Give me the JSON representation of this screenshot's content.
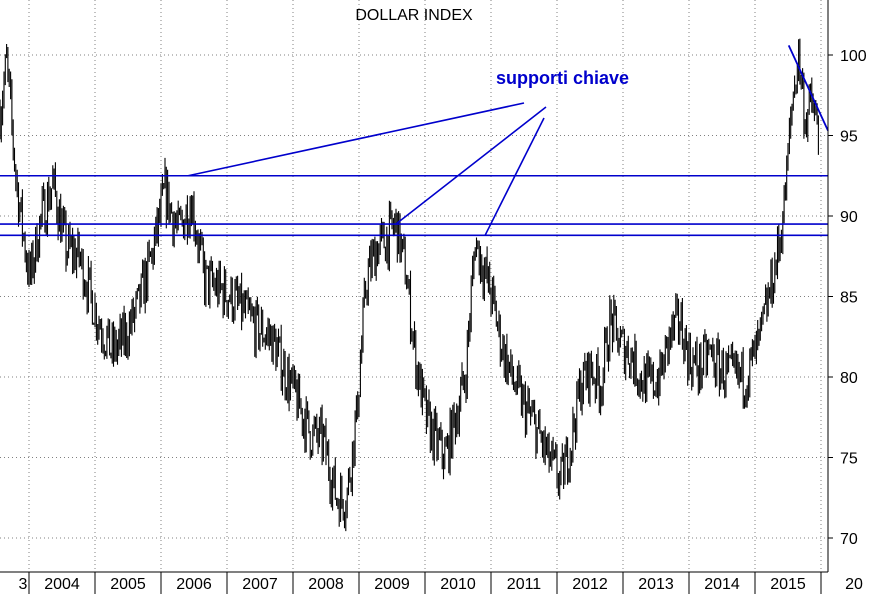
{
  "chart_data": {
    "type": "line",
    "title": "DOLLAR INDEX",
    "annotation": "supporti chiave",
    "xlabel": "",
    "ylabel": "",
    "x_ticks": [
      "3",
      "2004",
      "2005",
      "2006",
      "2007",
      "2008",
      "2009",
      "2010",
      "2011",
      "2012",
      "2013",
      "2014",
      "2015",
      "20"
    ],
    "y_ticks": [
      "70",
      "75",
      "80",
      "85",
      "90",
      "95",
      "100"
    ],
    "ylim": [
      68,
      104
    ],
    "xlim": [
      2003.0,
      2016.0
    ],
    "grid": true,
    "series": [
      {
        "values_x": [
          2003.0,
          2003.1,
          2003.25,
          2003.45,
          2003.6,
          2003.8,
          2004.0,
          2004.2,
          2004.45,
          2004.7,
          2004.9,
          2005.1,
          2005.3,
          2005.5,
          2005.7,
          2005.9,
          2006.1,
          2006.3,
          2006.5,
          2006.7,
          2006.9,
          2007.1,
          2007.3,
          2007.5,
          2007.7,
          2007.9,
          2008.1,
          2008.25,
          2008.4,
          2008.55,
          2008.7,
          2008.85,
          2009.0,
          2009.15,
          2009.3,
          2009.45,
          2009.6,
          2009.75,
          2009.9,
          2010.05,
          2010.2,
          2010.45,
          2010.6,
          2010.75,
          2010.9,
          2011.1,
          2011.3,
          2011.5,
          2011.65,
          2011.8,
          2011.95,
          2012.1,
          2012.25,
          2012.4,
          2012.55,
          2012.7,
          2012.85,
          2013.0,
          2013.15,
          2013.3,
          2013.45,
          2013.6,
          2013.75,
          2013.9,
          2014.1,
          2014.3,
          2014.5,
          2014.6,
          2014.7,
          2014.8,
          2014.9,
          2015.0,
          2015.1,
          2015.2,
          2015.3,
          2015.4
        ],
        "values": [
          96.5,
          99.5,
          92.0,
          86.0,
          89.5,
          92.0,
          88.0,
          87.5,
          84.0,
          81.5,
          82.5,
          84.5,
          87.5,
          91.5,
          89.0,
          91.0,
          86.0,
          85.5,
          85.0,
          84.0,
          83.0,
          82.5,
          80.5,
          78.5,
          76.5,
          76.0,
          72.5,
          72.5,
          77.5,
          86.0,
          88.0,
          88.5,
          89.5,
          86.5,
          81.0,
          77.5,
          76.0,
          75.0,
          77.5,
          80.0,
          88.5,
          85.0,
          82.0,
          80.0,
          78.5,
          77.0,
          75.0,
          73.5,
          76.0,
          79.5,
          80.5,
          79.5,
          83.5,
          82.0,
          81.5,
          80.0,
          79.5,
          80.0,
          82.5,
          83.5,
          81.0,
          80.5,
          81.5,
          80.5,
          80.0,
          80.0,
          82.0,
          84.0,
          86.0,
          88.0,
          91.5,
          97.0,
          100.0,
          96.0,
          97.0,
          95.0
        ]
      }
    ],
    "support_levels": [
      92.5,
      89.5,
      88.8
    ],
    "colors": {
      "price": "#000000",
      "annotation": "#0000cc",
      "grid": "#808080"
    }
  }
}
